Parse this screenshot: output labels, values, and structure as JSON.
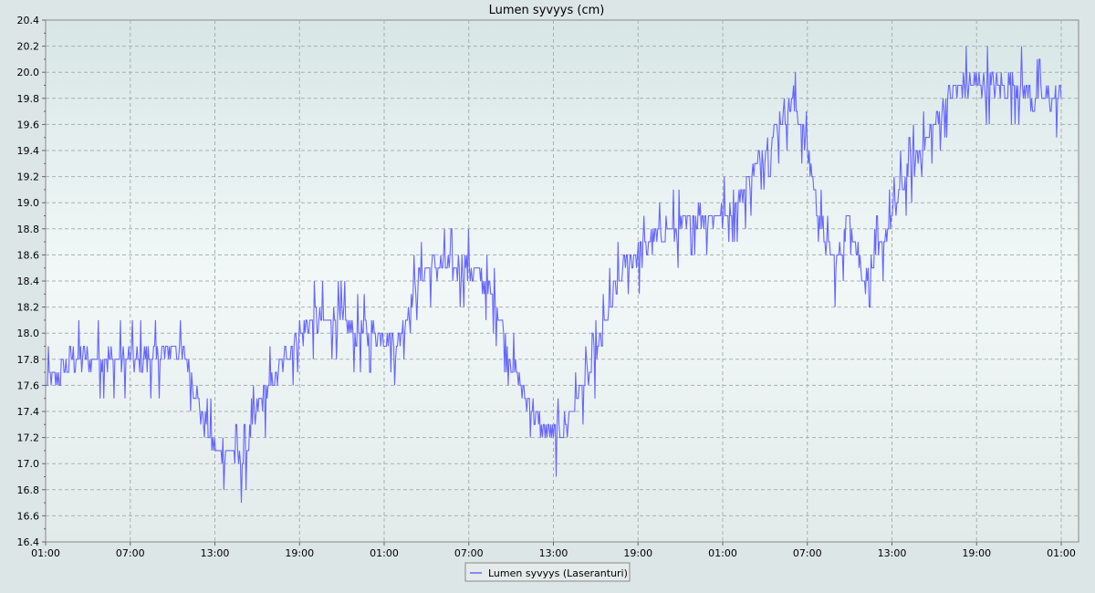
{
  "chart_data": {
    "type": "line",
    "title": "Lumen syvyys (cm)",
    "xlabel": "",
    "ylabel": "",
    "ylim": [
      16.4,
      20.4
    ],
    "yticks": [
      16.4,
      16.6,
      16.8,
      17.0,
      17.2,
      17.4,
      17.6,
      17.8,
      18.0,
      18.2,
      18.4,
      18.6,
      18.8,
      19.0,
      19.2,
      19.4,
      19.6,
      19.8,
      20.0,
      20.2,
      20.4
    ],
    "ytick_labels": [
      "16.4",
      "16.6",
      "16.8",
      "17.0",
      "17.2",
      "17.4",
      "17.6",
      "17.8",
      "18.0",
      "18.2",
      "18.4",
      "18.6",
      "18.8",
      "19.0",
      "19.2",
      "19.4",
      "19.6",
      "19.8",
      "20.0",
      "20.2",
      "20.4"
    ],
    "xlim_hours": [
      0,
      72
    ],
    "xtick_hours": [
      0,
      6,
      12,
      18,
      24,
      30,
      36,
      42,
      48,
      54,
      60,
      66,
      72
    ],
    "xtick_labels": [
      "01:00",
      "07:00",
      "13:00",
      "19:00",
      "01:00",
      "07:00",
      "13:00",
      "19:00",
      "01:00",
      "07:00",
      "13:00",
      "19:00",
      "01:00"
    ],
    "grid": true,
    "legend_position": "bottom-center",
    "series": [
      {
        "name": "Lumen syvyys (Laseranturi)",
        "color": "#6666ff",
        "x_hours": [
          0,
          1,
          2,
          3,
          4,
          5,
          6,
          7,
          8,
          9,
          10,
          11,
          12,
          13,
          14,
          15,
          16,
          17,
          18,
          19,
          20,
          21,
          22,
          23,
          24,
          25,
          26,
          27,
          28,
          29,
          30,
          31,
          32,
          33,
          34,
          35,
          36,
          37,
          38,
          39,
          40,
          41,
          42,
          43,
          44,
          45,
          46,
          47,
          48,
          49,
          50,
          51,
          52,
          53,
          54,
          55,
          56,
          57,
          58,
          59,
          60,
          61,
          62,
          63,
          64,
          65,
          66,
          67,
          68,
          69,
          70,
          71,
          72
        ],
        "values": [
          17.6,
          17.7,
          17.8,
          17.8,
          17.8,
          17.8,
          17.8,
          17.8,
          17.8,
          17.9,
          17.8,
          17.4,
          17.1,
          17.1,
          17.0,
          17.4,
          17.6,
          17.8,
          18.0,
          18.1,
          18.1,
          18.1,
          18.0,
          18.0,
          18.0,
          17.9,
          18.3,
          18.5,
          18.5,
          18.5,
          18.5,
          18.4,
          18.2,
          17.8,
          17.5,
          17.3,
          17.2,
          17.3,
          17.6,
          17.8,
          18.2,
          18.5,
          18.6,
          18.7,
          18.8,
          18.8,
          18.9,
          18.9,
          18.9,
          19.0,
          19.2,
          19.4,
          19.6,
          19.8,
          19.4,
          18.8,
          18.5,
          18.9,
          18.4,
          18.6,
          18.9,
          19.2,
          19.4,
          19.6,
          19.8,
          19.9,
          19.9,
          19.9,
          19.9,
          19.9,
          19.8,
          19.8,
          19.8
        ]
      }
    ]
  }
}
